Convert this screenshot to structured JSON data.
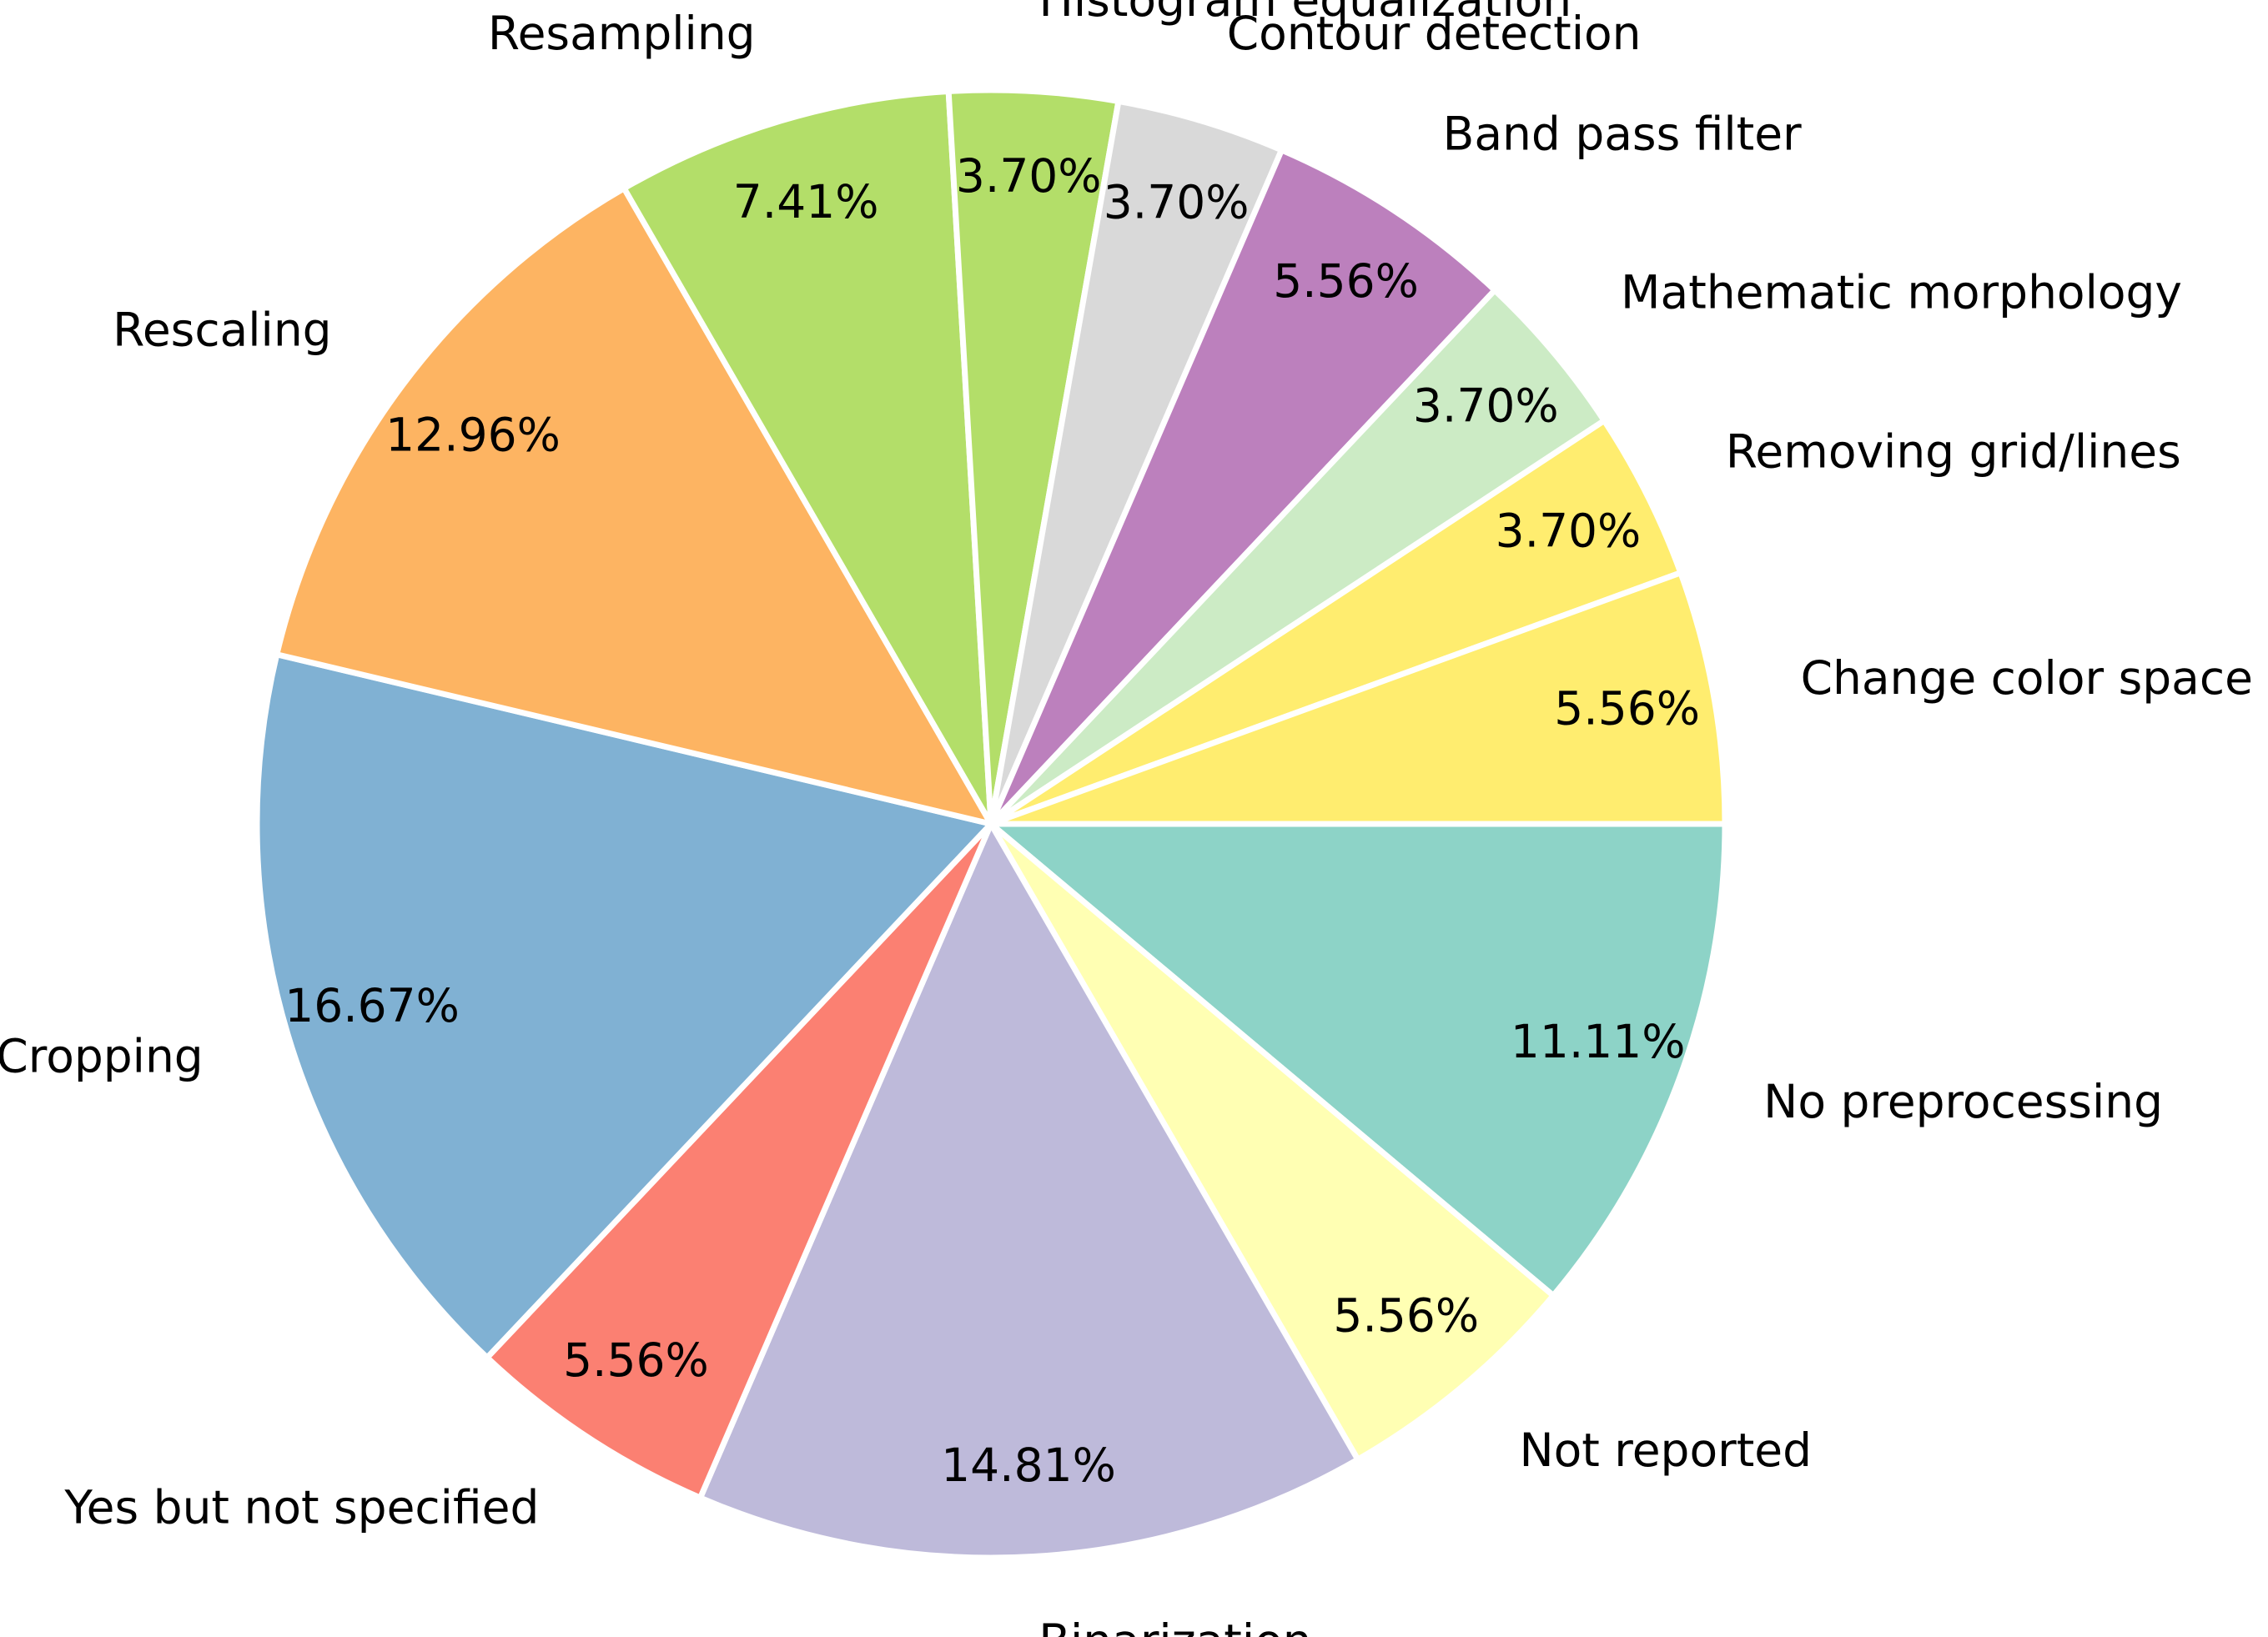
{
  "chart_data": {
    "type": "pie",
    "categories": [
      "No preprocessing",
      "Not reported",
      "Binarization",
      "Yes but not specified",
      "Cropping",
      "Rescaling",
      "Resampling",
      "Histogram equalization",
      "Contour detection",
      "Band pass filter",
      "Mathematic morphology",
      "Removing grid/lines",
      "Change color space"
    ],
    "values": [
      11.11,
      5.56,
      14.81,
      5.56,
      16.67,
      12.96,
      7.41,
      3.7,
      3.7,
      5.56,
      3.7,
      3.7,
      5.56
    ],
    "value_labels": [
      "11.11%",
      "5.56%",
      "14.81%",
      "5.56%",
      "16.67%",
      "12.96%",
      "7.41%",
      "3.70%",
      "3.70%",
      "5.56%",
      "3.70%",
      "3.70%",
      "5.56%"
    ],
    "colors": [
      "#8dd3c7",
      "#ffffb3",
      "#bebada",
      "#fb8072",
      "#80b1d3",
      "#fdb462",
      "#b3de69",
      "#b3de69",
      "#d9d9d9",
      "#bc80bd",
      "#ccebc5",
      "#ffed6f",
      "#ffed6f"
    ]
  }
}
